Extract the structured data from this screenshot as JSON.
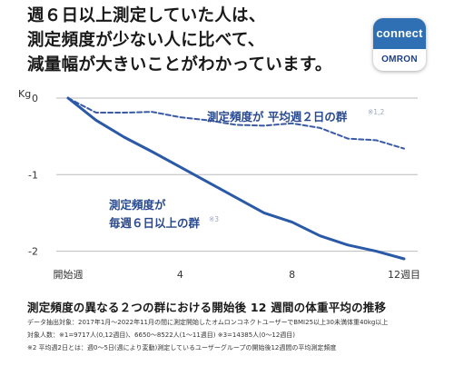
{
  "headline": [
    "週６日以上測定していた人は、",
    "測定頻度が少ない人に比べて、",
    "減量幅が大きいことがわかっています。"
  ],
  "logo": {
    "top": "connect",
    "bottom": "OMRON",
    "bg_color": "#2f6fb3"
  },
  "chart_data": {
    "type": "line",
    "ylabel": "Kg",
    "xlim": [
      0,
      12
    ],
    "ylim": [
      -2.1,
      0
    ],
    "yticks": [
      {
        "value": 0,
        "label": "0"
      },
      {
        "value": -1,
        "label": "-1"
      },
      {
        "value": -2,
        "label": "-2"
      }
    ],
    "xticks": [
      {
        "value": 0,
        "label": "開始週"
      },
      {
        "value": 4,
        "label": "4"
      },
      {
        "value": 8,
        "label": "8"
      },
      {
        "value": 12,
        "label": "12週目"
      }
    ],
    "grid": "horizontal",
    "series": [
      {
        "name": "平均週２日の群",
        "label_main": "測定頻度が 平均週２日の群",
        "label_sup": "※1,2",
        "style": "dashed",
        "color": "#3a5aa6",
        "x": [
          0,
          1,
          2,
          3,
          4,
          5,
          6,
          7,
          8,
          9,
          10,
          11,
          12
        ],
        "y": [
          0,
          -0.19,
          -0.19,
          -0.18,
          -0.25,
          -0.29,
          -0.35,
          -0.36,
          -0.33,
          -0.39,
          -0.53,
          -0.55,
          -0.66
        ]
      },
      {
        "name": "毎週６日以上の群",
        "label_line1": "測定頻度が",
        "label_line2": "毎週６日以上の群",
        "label_sup": "※3",
        "style": "solid",
        "color": "#2a59a8",
        "x": [
          0,
          1,
          2,
          3,
          4,
          5,
          6,
          7,
          8,
          9,
          10,
          11,
          12
        ],
        "y": [
          0,
          -0.29,
          -0.51,
          -0.7,
          -0.9,
          -1.1,
          -1.3,
          -1.5,
          -1.62,
          -1.8,
          -1.92,
          -2.0,
          -2.1
        ]
      }
    ]
  },
  "caption": {
    "title": "測定頻度の異なる２つの群における開始後 12 週間の体重平均の推移",
    "notes": [
      "データ抽出対象：2017年1月～2022年11月の間に測定開始したオムロンコネクトユーザーでBMI25以上30未満体重40kg以上",
      "対象人数：※1=9717人(0,12週目)、6650～8522人(1～11週目) ※3=14385人(0～12週目)",
      "※2 平均週2日とは：週0～5日(週により変動)測定しているユーザーグループの開始後12週間の平均測定頻度"
    ]
  }
}
